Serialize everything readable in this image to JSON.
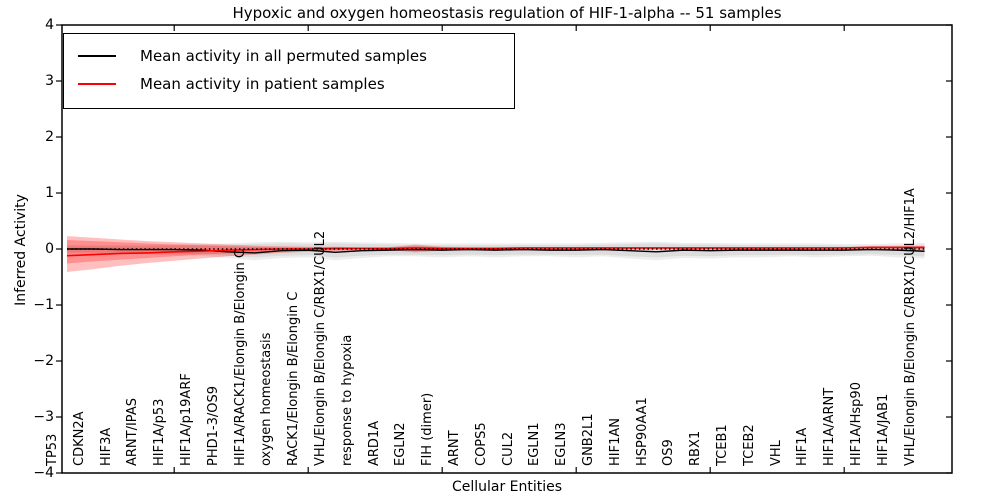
{
  "title": "Hypoxic and oxygen homeostasis regulation of HIF-1-alpha -- 51 samples",
  "axes": {
    "xlabel": "Cellular Entities",
    "ylabel": "Inferred Activity",
    "ytick_labels": [
      "4",
      "3",
      "2",
      "1",
      "0",
      "−1",
      "−2",
      "−3",
      "−4"
    ],
    "ytick_values": [
      4,
      3,
      2,
      1,
      0,
      -1,
      -2,
      -3,
      -4
    ]
  },
  "legend": {
    "items": [
      {
        "label": "Mean activity in all permuted samples",
        "color": "#000000"
      },
      {
        "label": "Mean activity in patient samples",
        "color": "#ff0000"
      }
    ]
  },
  "chart_data": {
    "type": "line",
    "title": "Hypoxic and oxygen homeostasis regulation of HIF-1-alpha -- 51 samples",
    "xlabel": "Cellular Entities",
    "ylabel": "Inferred Activity",
    "ylim": [
      -4,
      4
    ],
    "grid": false,
    "legend_position": "upper left",
    "categories": [
      "TP53",
      "CDKN2A",
      "HIF3A",
      "ARNT/IPAS",
      "HIF1A/p53",
      "HIF1A/p19ARF",
      "PHD1-3/OS9",
      "HIF1A/RACK1/Elongin B/Elongin C",
      "oxygen homeostasis",
      "RACK1/Elongin B/Elongin C",
      "VHL/Elongin B/Elongin C/RBX1/CUL2",
      "response to hypoxia",
      "ARD1A",
      "EGLN2",
      "FIH (dimer)",
      "ARNT",
      "COPS5",
      "CUL2",
      "EGLN1",
      "EGLN3",
      "GNB2L1",
      "HIF1AN",
      "HSP90AA1",
      "OS9",
      "RBX1",
      "TCEB1",
      "TCEB2",
      "VHL",
      "HIF1A",
      "HIF1A/ARNT",
      "HIF1A/Hsp90",
      "HIF1A/JAB1",
      "VHL/Elongin B/Elongin C/RBX1/CUL2/HIF1A"
    ],
    "xtick_mark_indices": [
      4,
      9,
      14,
      19,
      24,
      29
    ],
    "series": [
      {
        "name": "Mean activity in all permuted samples",
        "color": "#000000",
        "style": "solid",
        "width": 1.4,
        "values": [
          0.0,
          0.0,
          -0.01,
          -0.01,
          -0.01,
          -0.02,
          -0.05,
          -0.07,
          -0.03,
          -0.02,
          -0.06,
          -0.03,
          -0.02,
          -0.01,
          -0.02,
          -0.01,
          -0.02,
          -0.01,
          -0.02,
          -0.02,
          -0.01,
          -0.03,
          -0.05,
          -0.02,
          -0.03,
          -0.02,
          -0.02,
          -0.02,
          -0.02,
          -0.02,
          -0.01,
          -0.02,
          -0.04
        ]
      },
      {
        "name": "Mean activity in patient samples",
        "color": "#ff0000",
        "style": "solid",
        "width": 1.6,
        "values": [
          -0.12,
          -0.1,
          -0.08,
          -0.07,
          -0.05,
          -0.04,
          -0.02,
          -0.01,
          0.0,
          0.0,
          0.01,
          0.01,
          0.01,
          0.02,
          0.01,
          0.01,
          0.01,
          0.02,
          0.02,
          0.02,
          0.02,
          0.02,
          0.02,
          0.02,
          0.02,
          0.02,
          0.02,
          0.02,
          0.02,
          0.02,
          0.03,
          0.03,
          0.03
        ]
      }
    ],
    "reference_line": {
      "y": 0,
      "color": "#000000",
      "style": "dotted",
      "width": 1.6
    },
    "bands": [
      {
        "name": "permuted-range-outer",
        "color": "#888888",
        "opacity": 0.15,
        "upper": [
          0.07,
          0.07,
          0.07,
          0.07,
          0.08,
          0.08,
          0.1,
          0.12,
          0.13,
          0.12,
          0.13,
          0.12,
          0.11,
          0.1,
          0.1,
          0.1,
          0.1,
          0.1,
          0.1,
          0.1,
          0.11,
          0.12,
          0.13,
          0.11,
          0.11,
          0.1,
          0.1,
          0.1,
          0.1,
          0.09,
          0.09,
          0.1,
          0.11
        ],
        "lower": [
          -0.08,
          -0.08,
          -0.09,
          -0.09,
          -0.11,
          -0.12,
          -0.16,
          -0.2,
          -0.16,
          -0.15,
          -0.2,
          -0.16,
          -0.13,
          -0.13,
          -0.15,
          -0.13,
          -0.15,
          -0.13,
          -0.13,
          -0.15,
          -0.13,
          -0.17,
          -0.2,
          -0.16,
          -0.17,
          -0.15,
          -0.15,
          -0.13,
          -0.15,
          -0.13,
          -0.12,
          -0.15,
          -0.17
        ]
      },
      {
        "name": "permuted-range-inner",
        "color": "#888888",
        "opacity": 0.15,
        "upper": [
          0.05,
          0.05,
          0.05,
          0.05,
          0.06,
          0.06,
          0.07,
          0.09,
          0.1,
          0.09,
          0.1,
          0.09,
          0.08,
          0.07,
          0.07,
          0.07,
          0.07,
          0.07,
          0.07,
          0.07,
          0.08,
          0.09,
          0.1,
          0.08,
          0.08,
          0.07,
          0.07,
          0.07,
          0.07,
          0.06,
          0.06,
          0.07,
          0.08
        ],
        "lower": [
          -0.06,
          -0.06,
          -0.07,
          -0.07,
          -0.08,
          -0.09,
          -0.12,
          -0.15,
          -0.12,
          -0.11,
          -0.15,
          -0.12,
          -0.1,
          -0.1,
          -0.11,
          -0.1,
          -0.11,
          -0.1,
          -0.1,
          -0.11,
          -0.1,
          -0.13,
          -0.15,
          -0.12,
          -0.13,
          -0.11,
          -0.11,
          -0.1,
          -0.11,
          -0.1,
          -0.09,
          -0.11,
          -0.13
        ]
      },
      {
        "name": "patient-range-outer",
        "color": "#ff0000",
        "opacity": 0.25,
        "upper": [
          0.23,
          0.2,
          0.17,
          0.14,
          0.12,
          0.1,
          0.08,
          0.06,
          0.05,
          0.04,
          0.04,
          0.03,
          0.03,
          0.08,
          0.04,
          0.03,
          0.03,
          0.03,
          0.03,
          0.03,
          0.03,
          0.03,
          0.03,
          0.03,
          0.03,
          0.03,
          0.03,
          0.03,
          0.03,
          0.03,
          0.04,
          0.04,
          0.05
        ],
        "lower": [
          -0.41,
          -0.36,
          -0.3,
          -0.25,
          -0.21,
          -0.17,
          -0.13,
          -0.1,
          -0.07,
          -0.05,
          -0.04,
          -0.03,
          -0.02,
          -0.06,
          -0.03,
          -0.02,
          -0.02,
          -0.02,
          -0.01,
          -0.01,
          -0.01,
          -0.01,
          -0.01,
          -0.01,
          -0.01,
          -0.01,
          -0.01,
          -0.01,
          0.0,
          0.0,
          0.0,
          -0.01,
          -0.02
        ]
      },
      {
        "name": "patient-range-inner",
        "color": "#ff0000",
        "opacity": 0.25,
        "upper": [
          0.16,
          0.14,
          0.12,
          0.1,
          0.08,
          0.07,
          0.05,
          0.04,
          0.03,
          0.03,
          0.03,
          0.02,
          0.02,
          0.05,
          0.03,
          0.02,
          0.02,
          0.02,
          0.03,
          0.03,
          0.03,
          0.03,
          0.03,
          0.03,
          0.03,
          0.03,
          0.03,
          0.03,
          0.03,
          0.03,
          0.03,
          0.03,
          0.04
        ],
        "lower": [
          -0.26,
          -0.22,
          -0.19,
          -0.16,
          -0.13,
          -0.1,
          -0.08,
          -0.06,
          -0.04,
          -0.03,
          -0.02,
          -0.01,
          -0.01,
          -0.04,
          -0.02,
          -0.01,
          -0.01,
          0.0,
          0.0,
          0.0,
          0.0,
          0.0,
          0.0,
          0.0,
          0.0,
          0.0,
          0.0,
          0.0,
          0.01,
          0.01,
          0.01,
          0.01,
          0.0
        ]
      }
    ]
  }
}
